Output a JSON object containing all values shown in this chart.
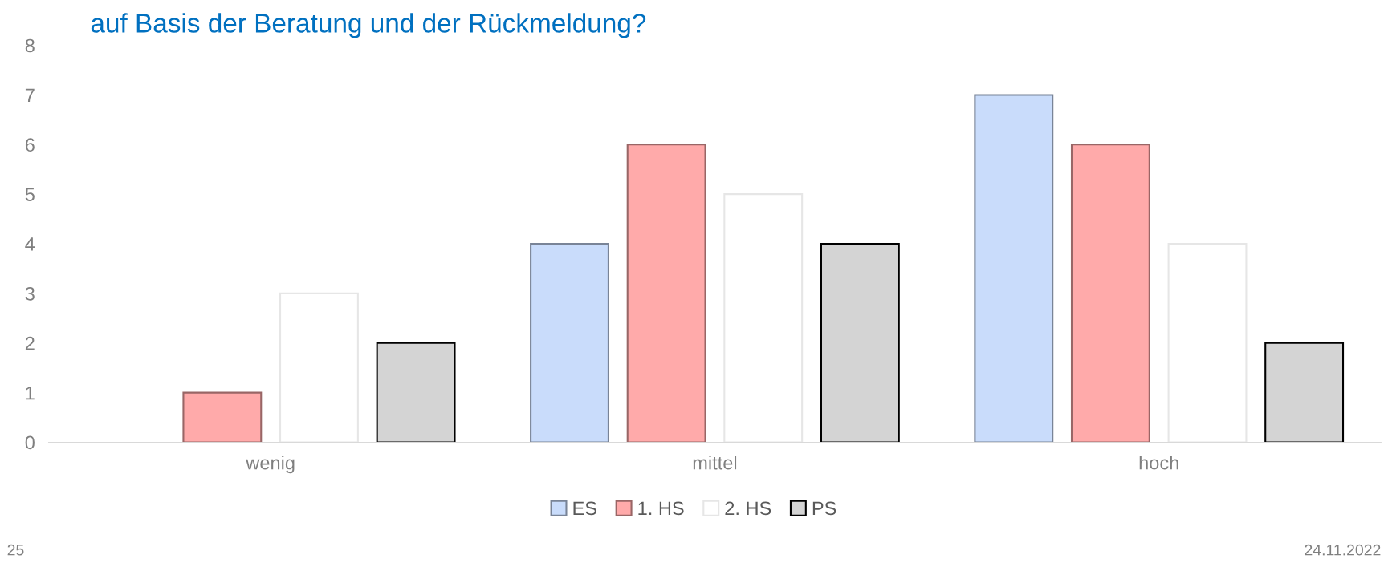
{
  "chart_data": {
    "type": "bar",
    "title": "auf Basis der Beratung und der Rückmeldung?",
    "categories": [
      "wenig",
      "mittel",
      "hoch"
    ],
    "series": [
      {
        "name": "ES",
        "color": "#c9dcfb",
        "values": [
          0,
          4,
          7
        ]
      },
      {
        "name": "1. HS",
        "color": "#ffaaaa",
        "values": [
          1,
          6,
          6
        ]
      },
      {
        "name": "2. HS",
        "color": "#ffffff",
        "values": [
          3,
          5,
          4
        ]
      },
      {
        "name": "PS",
        "color": "#d4d4d4",
        "values": [
          2,
          4,
          2
        ]
      }
    ],
    "ylim": [
      0,
      8
    ],
    "yticks": [
      0,
      1,
      2,
      3,
      4,
      5,
      6,
      7,
      8
    ],
    "grid": false,
    "legend": "bottom",
    "annotations": [
      "25",
      "24.11.2022"
    ]
  }
}
